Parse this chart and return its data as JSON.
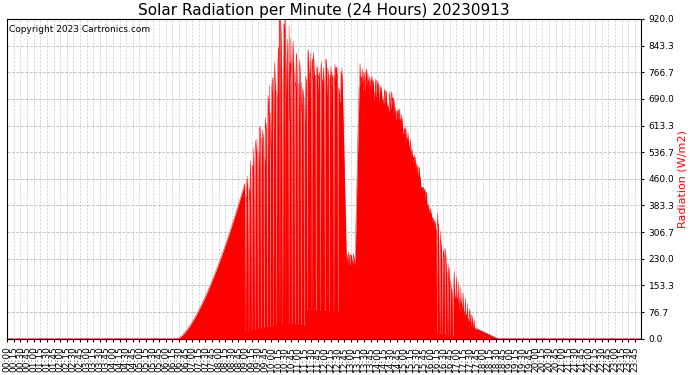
{
  "title": "Solar Radiation per Minute (24 Hours) 20230913",
  "ylabel": "Radiation (W/m2)",
  "copyright": "Copyright 2023 Cartronics.com",
  "bg_color": "#ffffff",
  "plot_bg_color": "#ffffff",
  "fill_color": "#ff0000",
  "line_color": "#ff0000",
  "grid_color": "#aaaaaa",
  "ylabel_color": "#ff0000",
  "ytick_labels": [
    "0.0",
    "76.7",
    "153.3",
    "230.0",
    "306.7",
    "383.3",
    "460.0",
    "536.7",
    "613.3",
    "690.0",
    "766.7",
    "843.3",
    "920.0"
  ],
  "ytick_values": [
    0.0,
    76.7,
    153.3,
    230.0,
    306.7,
    383.3,
    460.0,
    536.7,
    613.3,
    690.0,
    766.7,
    843.3,
    920.0
  ],
  "ymin": 0.0,
  "ymax": 920.0,
  "title_fontsize": 11,
  "axis_fontsize": 6.5,
  "copyright_fontsize": 6.5,
  "ylabel_fontsize": 8
}
